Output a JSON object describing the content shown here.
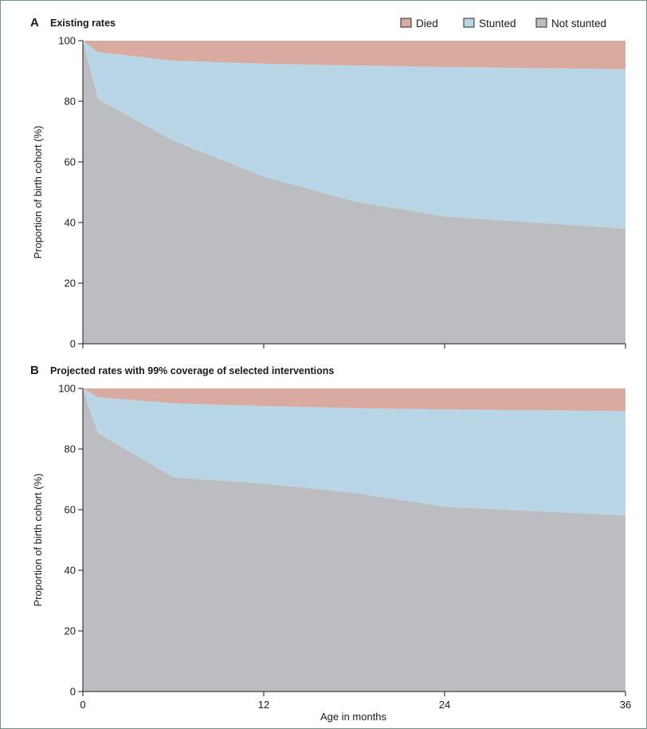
{
  "legend": [
    {
      "key": "died",
      "label": "Died",
      "color": "#d9aba0"
    },
    {
      "key": "stunted",
      "label": "Stunted",
      "color": "#b9d6e6"
    },
    {
      "key": "not_stunted",
      "label": "Not stunted",
      "color": "#bcbdc1"
    }
  ],
  "xlabel": "Age in months",
  "chart_data": [
    {
      "type": "area",
      "stacked": true,
      "panel": "A",
      "title": "Existing rates",
      "ylabel": "Proportion of birth cohort (%)",
      "xlabel": "",
      "x": [
        0,
        1,
        6,
        12,
        18,
        24,
        36
      ],
      "xticks": [
        0,
        12,
        24,
        36
      ],
      "xtick_labels": [
        "",
        "",
        "",
        ""
      ],
      "yticks": [
        0,
        20,
        40,
        60,
        80,
        100
      ],
      "ylim": [
        0,
        100
      ],
      "xlim": [
        0,
        36
      ],
      "series": [
        {
          "name": "Not stunted",
          "key": "not_stunted",
          "values": [
            100,
            80.8,
            67,
            55.2,
            47,
            42,
            38
          ]
        },
        {
          "name": "Stunted",
          "key": "stunted",
          "values": [
            0,
            15.4,
            26.4,
            37.2,
            44.8,
            49.3,
            52.6
          ]
        },
        {
          "name": "Died",
          "key": "died",
          "values": [
            0,
            3.8,
            6.6,
            7.6,
            8.2,
            8.7,
            9.4
          ]
        }
      ],
      "legend_position": "top-right"
    },
    {
      "type": "area",
      "stacked": true,
      "panel": "B",
      "title": "Projected rates with 99% coverage of selected interventions",
      "ylabel": "Proportion of birth cohort (%)",
      "xlabel": "Age in months",
      "x": [
        0,
        1,
        6,
        12,
        18,
        24,
        36
      ],
      "xticks": [
        0,
        12,
        24,
        36
      ],
      "xtick_labels": [
        "0",
        "12",
        "24",
        "36"
      ],
      "yticks": [
        0,
        20,
        40,
        60,
        80,
        100
      ],
      "ylim": [
        0,
        100
      ],
      "xlim": [
        0,
        36
      ],
      "series": [
        {
          "name": "Not stunted",
          "key": "not_stunted",
          "values": [
            100,
            85.3,
            70.7,
            68.6,
            65.6,
            61,
            58.1
          ]
        },
        {
          "name": "Stunted",
          "key": "stunted",
          "values": [
            0,
            11.8,
            24.4,
            25.6,
            27.9,
            32.1,
            34.4
          ]
        },
        {
          "name": "Died",
          "key": "died",
          "values": [
            0,
            2.9,
            4.9,
            5.8,
            6.5,
            6.9,
            7.5
          ]
        }
      ]
    }
  ]
}
